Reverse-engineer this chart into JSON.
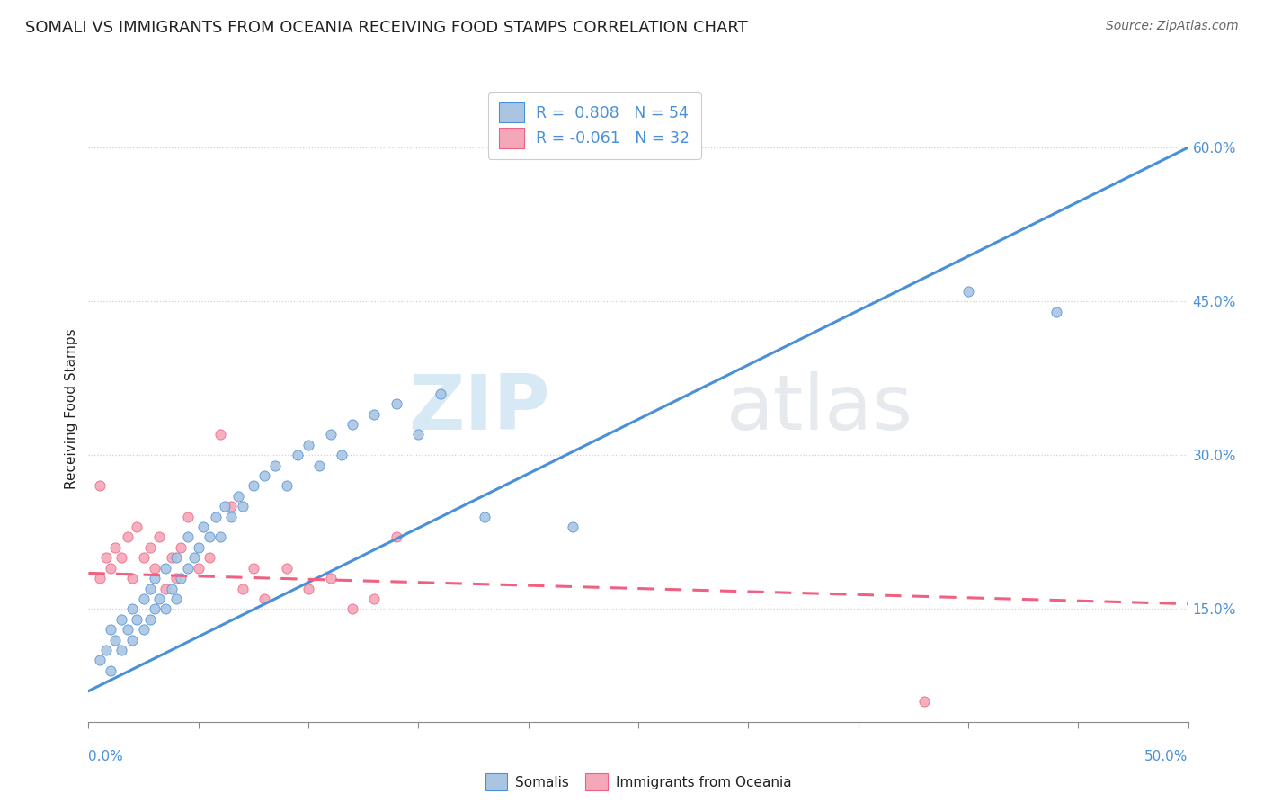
{
  "title": "SOMALI VS IMMIGRANTS FROM OCEANIA RECEIVING FOOD STAMPS CORRELATION CHART",
  "source": "Source: ZipAtlas.com",
  "ylabel": "Receiving Food Stamps",
  "ytick_vals": [
    0.15,
    0.3,
    0.45,
    0.6
  ],
  "ytick_labels": [
    "15.0%",
    "30.0%",
    "45.0%",
    "60.0%"
  ],
  "xlim": [
    0.0,
    0.5
  ],
  "ylim": [
    0.04,
    0.65
  ],
  "r_somali": 0.808,
  "n_somali": 54,
  "r_oceania": -0.061,
  "n_oceania": 32,
  "somali_color": "#aac5e2",
  "oceania_color": "#f4a7b8",
  "somali_line_color": "#4a90d9",
  "oceania_line_color": "#f06080",
  "somali_line_slope": 1.06,
  "somali_line_intercept": 0.07,
  "oceania_line_slope": -0.06,
  "oceania_line_intercept": 0.185,
  "legend_label_somali": "Somalis",
  "legend_label_oceania": "Immigrants from Oceania",
  "watermark_zip": "ZIP",
  "watermark_atlas": "atlas",
  "somali_scatter_x": [
    0.005,
    0.008,
    0.01,
    0.01,
    0.012,
    0.015,
    0.015,
    0.018,
    0.02,
    0.02,
    0.022,
    0.025,
    0.025,
    0.028,
    0.028,
    0.03,
    0.03,
    0.032,
    0.035,
    0.035,
    0.038,
    0.04,
    0.04,
    0.042,
    0.045,
    0.045,
    0.048,
    0.05,
    0.052,
    0.055,
    0.058,
    0.06,
    0.062,
    0.065,
    0.068,
    0.07,
    0.075,
    0.08,
    0.085,
    0.09,
    0.095,
    0.1,
    0.105,
    0.11,
    0.115,
    0.12,
    0.13,
    0.14,
    0.15,
    0.16,
    0.18,
    0.22,
    0.4,
    0.44
  ],
  "somali_scatter_y": [
    0.1,
    0.11,
    0.09,
    0.13,
    0.12,
    0.11,
    0.14,
    0.13,
    0.12,
    0.15,
    0.14,
    0.13,
    0.16,
    0.14,
    0.17,
    0.15,
    0.18,
    0.16,
    0.15,
    0.19,
    0.17,
    0.16,
    0.2,
    0.18,
    0.19,
    0.22,
    0.2,
    0.21,
    0.23,
    0.22,
    0.24,
    0.22,
    0.25,
    0.24,
    0.26,
    0.25,
    0.27,
    0.28,
    0.29,
    0.27,
    0.3,
    0.31,
    0.29,
    0.32,
    0.3,
    0.33,
    0.34,
    0.35,
    0.32,
    0.36,
    0.24,
    0.23,
    0.46,
    0.44
  ],
  "oceania_scatter_x": [
    0.005,
    0.008,
    0.01,
    0.012,
    0.015,
    0.018,
    0.02,
    0.022,
    0.025,
    0.028,
    0.03,
    0.032,
    0.035,
    0.038,
    0.04,
    0.042,
    0.045,
    0.05,
    0.055,
    0.06,
    0.065,
    0.07,
    0.075,
    0.08,
    0.09,
    0.1,
    0.11,
    0.12,
    0.13,
    0.14,
    0.38,
    0.005
  ],
  "oceania_scatter_y": [
    0.18,
    0.2,
    0.19,
    0.21,
    0.2,
    0.22,
    0.18,
    0.23,
    0.2,
    0.21,
    0.19,
    0.22,
    0.17,
    0.2,
    0.18,
    0.21,
    0.24,
    0.19,
    0.2,
    0.32,
    0.25,
    0.17,
    0.19,
    0.16,
    0.19,
    0.17,
    0.18,
    0.15,
    0.16,
    0.22,
    0.06,
    0.27
  ],
  "title_fontsize": 13,
  "tick_fontsize": 11,
  "source_fontsize": 10,
  "ylabel_fontsize": 11,
  "scatter_size": 65,
  "line_width": 2.2,
  "grid_color": "#d0d0d0",
  "axis_color": "#888888",
  "text_color": "#222222",
  "blue_label_color": "#4a90d9"
}
